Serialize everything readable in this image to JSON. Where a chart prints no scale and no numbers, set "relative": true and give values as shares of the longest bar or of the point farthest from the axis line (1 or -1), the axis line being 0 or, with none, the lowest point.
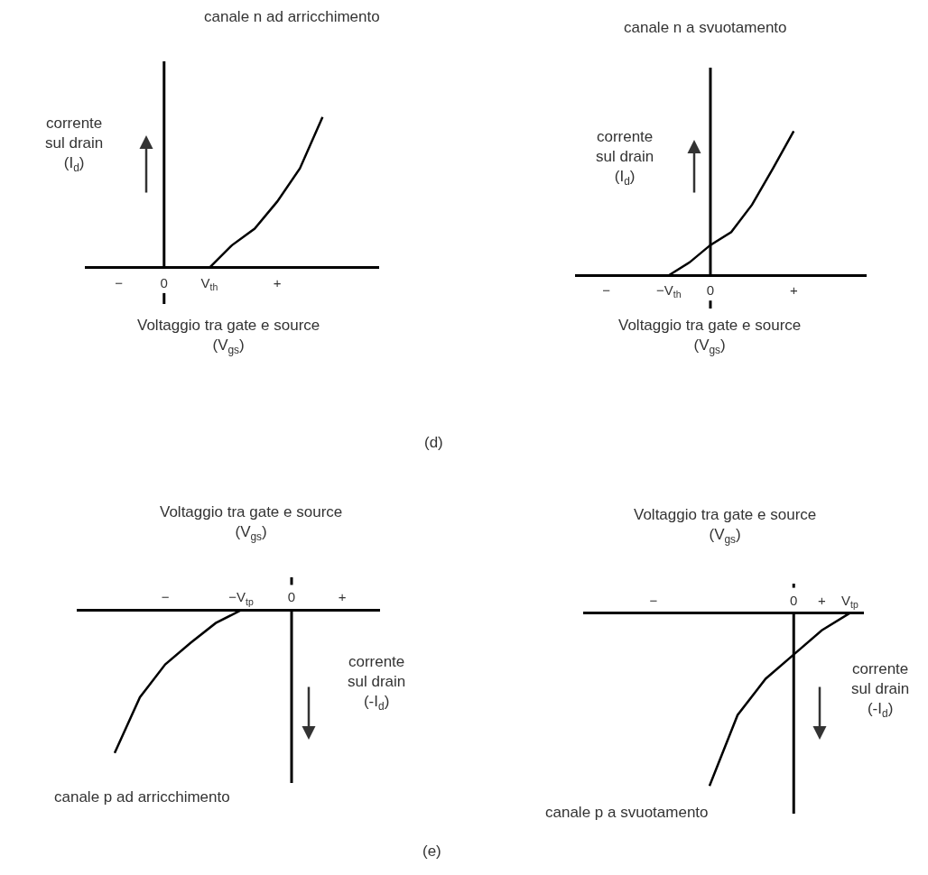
{
  "chart_data": [
    {
      "type": "line",
      "title": "canale n ad arricchimento",
      "xlabel": "Voltaggio tra gate e source\n(V$_{gs}$)",
      "ylabel": "corrente\nsul drain\n(I$_{d}$)",
      "relative": true,
      "tick_labels": "x",
      "marker": "none",
      "line_style": "solid",
      "categories": [
        null,
        "−",
        null,
        "0",
        null,
        "V$_{th}$",
        null,
        null,
        "+",
        null,
        null,
        null,
        null
      ],
      "ref_lines": [
        {
          "axis": "x",
          "value": "0",
          "color": "#000000"
        }
      ],
      "series": [
        {
          "color": "#000000",
          "values": [
            null,
            null,
            null,
            null,
            null,
            0,
            0.15,
            0.26,
            0.44,
            0.66,
            1,
            null,
            null
          ]
        }
      ]
    },
    {
      "type": "line",
      "title": "canale n a svuotamento",
      "xlabel": "Voltaggio tra gate e source\n(V$_{gs}$)",
      "ylabel": "corrente\nsul drain\n(I$_{d}$)",
      "relative": true,
      "tick_labels": "x",
      "marker": "none",
      "line_style": "solid",
      "annotations": [
        "(d)"
      ],
      "categories": [
        null,
        "−",
        null,
        null,
        "−V$_{th}$",
        null,
        "0",
        null,
        null,
        null,
        "+",
        null,
        null,
        null
      ],
      "ref_lines": [
        {
          "axis": "x",
          "value": "0",
          "color": "#000000"
        }
      ],
      "series": [
        {
          "color": "#000000",
          "values": [
            null,
            null,
            null,
            null,
            0,
            0.09,
            0.21,
            0.3,
            0.49,
            0.74,
            1,
            null,
            null,
            null
          ]
        }
      ]
    },
    {
      "type": "line",
      "title": "canale p ad arricchimento",
      "xlabel": "Voltaggio tra gate e source\n(V$_{gs}$)",
      "ylabel": "corrente\nsul drain\n(-I$_{d}$)",
      "relative": true,
      "tick_labels": "x",
      "marker": "none",
      "line_style": "solid",
      "categories": [
        null,
        null,
        null,
        "−",
        null,
        null,
        "−V$_{tp}$",
        null,
        "0",
        null,
        "+",
        null
      ],
      "ref_lines": [
        {
          "axis": "x",
          "value": "0",
          "color": "#000000"
        }
      ],
      "series": [
        {
          "color": "#000000",
          "values": [
            null,
            -1,
            -0.61,
            -0.38,
            -0.23,
            -0.09,
            0,
            null,
            null,
            null,
            null,
            null
          ]
        }
      ]
    },
    {
      "type": "line",
      "title": "canale p a svuotamento",
      "xlabel": "Voltaggio tra gate e source\n(V$_{gs}$)",
      "ylabel": "corrente\nsul drain\n(-I$_{d}$)",
      "relative": true,
      "tick_labels": "x",
      "marker": "none",
      "line_style": "solid",
      "annotations": [
        "(e)"
      ],
      "categories": [
        null,
        null,
        "−",
        null,
        null,
        null,
        null,
        "0",
        "+",
        "V$_{tp}$"
      ],
      "ref_lines": [
        {
          "axis": "x",
          "value": "0",
          "color": "#000000"
        }
      ],
      "series": [
        {
          "color": "#000000",
          "values": [
            null,
            null,
            null,
            null,
            -1,
            -0.59,
            -0.38,
            -0.24,
            -0.1,
            0
          ]
        }
      ]
    }
  ]
}
